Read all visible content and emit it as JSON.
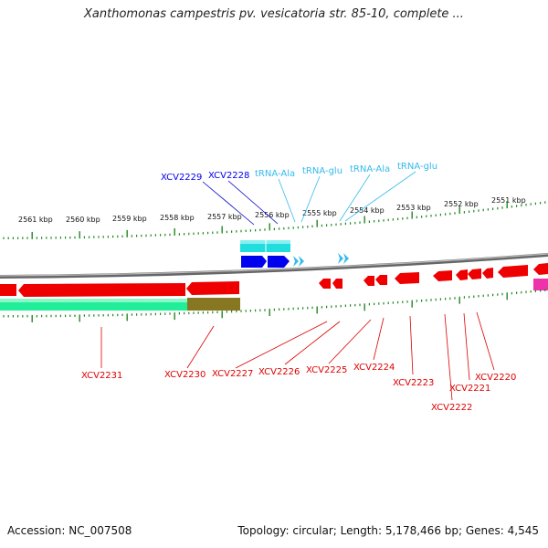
{
  "title": "Xanthomonas campestris pv. vesicatoria str. 85-10, complete ...",
  "footer": {
    "accession": "Accession: NC_007508",
    "stats": "Topology: circular; Length: 5,178,466 bp; Genes: 4,545"
  },
  "colors": {
    "forward_gene": "#0000ee",
    "forward_trna": "#33bbee",
    "reverse_gene": "#ee0000",
    "reverse_label": "#dd0000",
    "tick": "#228822",
    "backbone": "#888888",
    "cyan_track": "#22dddd",
    "green_track": "#22ee99",
    "olive_track": "#887722",
    "magenta_track": "#ee33aa"
  },
  "kbp_labels": [
    "2561 kbp",
    "2560 kbp",
    "2559 kbp",
    "2558 kbp",
    "2557 kbp",
    "2556 kbp",
    "2555 kbp",
    "2554 kbp",
    "2553 kbp",
    "2552 kbp",
    "2551 kbp"
  ],
  "forward_labels": [
    {
      "text": "XCV2229",
      "type": "gene"
    },
    {
      "text": "XCV2228",
      "type": "gene"
    },
    {
      "text": "tRNA-Ala",
      "type": "trna"
    },
    {
      "text": "tRNA-glu",
      "type": "trna"
    },
    {
      "text": "tRNA-Ala",
      "type": "trna"
    },
    {
      "text": "tRNA-glu",
      "type": "trna"
    }
  ],
  "reverse_labels": [
    "XCV2231",
    "XCV2230",
    "XCV2227",
    "XCV2226",
    "XCV2225",
    "XCV2224",
    "XCV2223",
    "XCV2222",
    "XCV2221",
    "XCV2220"
  ]
}
